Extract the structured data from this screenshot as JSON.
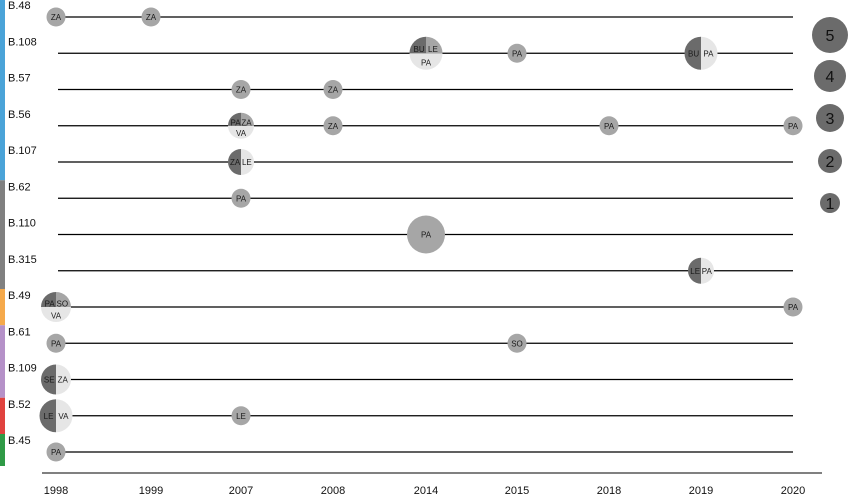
{
  "chart_data": {
    "type": "scatter",
    "title": "",
    "xlabel": "",
    "ylabel": "",
    "x_categories": [
      "1998",
      "1999",
      "2007",
      "2008",
      "2014",
      "2015",
      "2018",
      "2019",
      "2020"
    ],
    "rows": [
      {
        "label": "B.48",
        "group": "blue"
      },
      {
        "label": "B.108",
        "group": "blue"
      },
      {
        "label": "B.57",
        "group": "blue"
      },
      {
        "label": "B.56",
        "group": "blue"
      },
      {
        "label": "B.107",
        "group": "blue"
      },
      {
        "label": "B.62",
        "group": "gray"
      },
      {
        "label": "B.110",
        "group": "gray"
      },
      {
        "label": "B.315",
        "group": "gray"
      },
      {
        "label": "B.49",
        "group": "orange"
      },
      {
        "label": "B.61",
        "group": "purple"
      },
      {
        "label": "B.109",
        "group": "purple"
      },
      {
        "label": "B.52",
        "group": "red"
      },
      {
        "label": "B.45",
        "group": "green"
      }
    ],
    "group_colors": {
      "blue": "#4aa3d8",
      "gray": "#808080",
      "orange": "#f5a94b",
      "purple": "#b591c8",
      "red": "#e0423e",
      "green": "#2f9a46"
    },
    "points": [
      {
        "row": 0,
        "year": "1998",
        "count": 1,
        "codes": [
          "ZA"
        ]
      },
      {
        "row": 0,
        "year": "1999",
        "count": 1,
        "codes": [
          "ZA"
        ]
      },
      {
        "row": 1,
        "year": "2014",
        "count": 4,
        "codes": [
          "BU",
          "LE",
          "PA"
        ]
      },
      {
        "row": 1,
        "year": "2015",
        "count": 1,
        "codes": [
          "PA"
        ]
      },
      {
        "row": 1,
        "year": "2019",
        "count": 4,
        "codes": [
          "BU",
          "PA"
        ]
      },
      {
        "row": 2,
        "year": "2007",
        "count": 1,
        "codes": [
          "ZA"
        ]
      },
      {
        "row": 2,
        "year": "2008",
        "count": 1,
        "codes": [
          "ZA"
        ]
      },
      {
        "row": 3,
        "year": "2007",
        "count": 2,
        "codes": [
          "PA",
          "ZA",
          "VA"
        ]
      },
      {
        "row": 3,
        "year": "2008",
        "count": 1,
        "codes": [
          "ZA"
        ]
      },
      {
        "row": 3,
        "year": "2018",
        "count": 1,
        "codes": [
          "PA"
        ]
      },
      {
        "row": 3,
        "year": "2020",
        "count": 1,
        "codes": [
          "PA"
        ]
      },
      {
        "row": 4,
        "year": "2007",
        "count": 2,
        "codes": [
          "ZA",
          "LE"
        ]
      },
      {
        "row": 5,
        "year": "2007",
        "count": 1,
        "codes": [
          "PA"
        ]
      },
      {
        "row": 6,
        "year": "2014",
        "count": 5,
        "codes": [
          "PA"
        ]
      },
      {
        "row": 7,
        "year": "2019",
        "count": 2,
        "codes": [
          "LE",
          "PA"
        ]
      },
      {
        "row": 8,
        "year": "1998",
        "count": 3,
        "codes": [
          "PA",
          "SO",
          "VA"
        ]
      },
      {
        "row": 8,
        "year": "2020",
        "count": 1,
        "codes": [
          "PA"
        ]
      },
      {
        "row": 9,
        "year": "1998",
        "count": 1,
        "codes": [
          "PA"
        ]
      },
      {
        "row": 9,
        "year": "2015",
        "count": 1,
        "codes": [
          "SO"
        ]
      },
      {
        "row": 10,
        "year": "1998",
        "count": 3,
        "codes": [
          "SE",
          "ZA"
        ]
      },
      {
        "row": 11,
        "year": "1998",
        "count": 4,
        "codes": [
          "LE",
          "VA"
        ]
      },
      {
        "row": 11,
        "year": "2007",
        "count": 1,
        "codes": [
          "LE"
        ]
      },
      {
        "row": 12,
        "year": "1998",
        "count": 1,
        "codes": [
          "PA"
        ]
      }
    ],
    "size_legend": {
      "entries": [
        {
          "value": 5,
          "label": "5"
        },
        {
          "value": 4,
          "label": "4"
        },
        {
          "value": 3,
          "label": "3"
        },
        {
          "value": 2,
          "label": "2"
        },
        {
          "value": 1,
          "label": "1"
        }
      ],
      "placement": "right"
    },
    "colors": {
      "single": "#a6a6a6",
      "dark": "#6b6b6b",
      "light": "#e6e6e6",
      "legend": "#6b6b6b"
    }
  }
}
